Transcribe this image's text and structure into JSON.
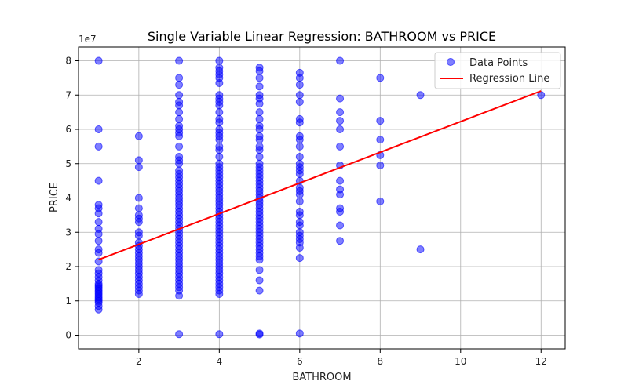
{
  "chart_data": {
    "type": "scatter",
    "title": "Single Variable Linear Regression: BATHROOM vs PRICE",
    "xlabel": "BATHROOM",
    "ylabel": "PRICE",
    "y_offset_label": "1e7",
    "xlim": [
      0.5,
      12.6
    ],
    "ylim": [
      -0.4,
      8.4
    ],
    "y_unit_multiplier": 10000000,
    "x_ticks": [
      2,
      4,
      6,
      8,
      10,
      12
    ],
    "y_ticks": [
      0,
      1,
      2,
      3,
      4,
      5,
      6,
      7,
      8
    ],
    "grid": true,
    "legend_position": "top-right",
    "colors": {
      "points": "#0000ff",
      "line": "#ff0000"
    },
    "series": [
      {
        "name": "Data Points",
        "kind": "scatter",
        "points": [
          [
            1,
            8.0
          ],
          [
            1,
            6.0
          ],
          [
            1,
            5.5
          ],
          [
            1,
            4.5
          ],
          [
            1,
            3.8
          ],
          [
            1,
            3.7
          ],
          [
            1,
            3.55
          ],
          [
            1,
            3.3
          ],
          [
            1,
            3.1
          ],
          [
            1,
            2.95
          ],
          [
            1,
            2.75
          ],
          [
            1,
            2.5
          ],
          [
            1,
            2.4
          ],
          [
            1,
            2.15
          ],
          [
            1,
            1.9
          ],
          [
            1,
            1.8
          ],
          [
            1,
            1.7
          ],
          [
            1,
            1.6
          ],
          [
            1,
            1.5
          ],
          [
            1,
            1.45
          ],
          [
            1,
            1.4
          ],
          [
            1,
            1.35
          ],
          [
            1,
            1.3
          ],
          [
            1,
            1.25
          ],
          [
            1,
            1.2
          ],
          [
            1,
            1.15
          ],
          [
            1,
            1.1
          ],
          [
            1,
            1.05
          ],
          [
            1,
            1.0
          ],
          [
            1,
            0.95
          ],
          [
            1,
            0.85
          ],
          [
            1,
            0.75
          ],
          [
            2,
            5.8
          ],
          [
            2,
            5.1
          ],
          [
            2,
            4.9
          ],
          [
            2,
            4.0
          ],
          [
            2,
            3.7
          ],
          [
            2,
            3.5
          ],
          [
            2,
            3.4
          ],
          [
            2,
            3.3
          ],
          [
            2,
            3.0
          ],
          [
            2,
            2.9
          ],
          [
            2,
            2.7
          ],
          [
            2,
            2.6
          ],
          [
            2,
            2.5
          ],
          [
            2,
            2.4
          ],
          [
            2,
            2.3
          ],
          [
            2,
            2.2
          ],
          [
            2,
            2.1
          ],
          [
            2,
            2.0
          ],
          [
            2,
            1.9
          ],
          [
            2,
            1.8
          ],
          [
            2,
            1.7
          ],
          [
            2,
            1.6
          ],
          [
            2,
            1.5
          ],
          [
            2,
            1.4
          ],
          [
            2,
            1.3
          ],
          [
            2,
            1.2
          ],
          [
            3,
            8.0
          ],
          [
            3,
            7.5
          ],
          [
            3,
            7.3
          ],
          [
            3,
            7.0
          ],
          [
            3,
            6.8
          ],
          [
            3,
            6.7
          ],
          [
            3,
            6.5
          ],
          [
            3,
            6.3
          ],
          [
            3,
            6.1
          ],
          [
            3,
            6.0
          ],
          [
            3,
            5.9
          ],
          [
            3,
            5.8
          ],
          [
            3,
            5.5
          ],
          [
            3,
            5.2
          ],
          [
            3,
            5.1
          ],
          [
            3,
            5.0
          ],
          [
            3,
            4.8
          ],
          [
            3,
            4.7
          ],
          [
            3,
            4.6
          ],
          [
            3,
            4.5
          ],
          [
            3,
            4.4
          ],
          [
            3,
            4.3
          ],
          [
            3,
            4.2
          ],
          [
            3,
            4.1
          ],
          [
            3,
            4.0
          ],
          [
            3,
            3.9
          ],
          [
            3,
            3.8
          ],
          [
            3,
            3.7
          ],
          [
            3,
            3.6
          ],
          [
            3,
            3.5
          ],
          [
            3,
            3.4
          ],
          [
            3,
            3.3
          ],
          [
            3,
            3.2
          ],
          [
            3,
            3.1
          ],
          [
            3,
            3.0
          ],
          [
            3,
            2.9
          ],
          [
            3,
            2.8
          ],
          [
            3,
            2.7
          ],
          [
            3,
            2.6
          ],
          [
            3,
            2.5
          ],
          [
            3,
            2.4
          ],
          [
            3,
            2.3
          ],
          [
            3,
            2.2
          ],
          [
            3,
            2.1
          ],
          [
            3,
            2.0
          ],
          [
            3,
            1.9
          ],
          [
            3,
            1.8
          ],
          [
            3,
            1.7
          ],
          [
            3,
            1.6
          ],
          [
            3,
            1.5
          ],
          [
            3,
            1.4
          ],
          [
            3,
            1.3
          ],
          [
            3,
            1.15
          ],
          [
            3,
            0.03
          ],
          [
            4,
            8.0
          ],
          [
            4,
            7.8
          ],
          [
            4,
            7.7
          ],
          [
            4,
            7.6
          ],
          [
            4,
            7.5
          ],
          [
            4,
            7.35
          ],
          [
            4,
            7.0
          ],
          [
            4,
            6.9
          ],
          [
            4,
            6.8
          ],
          [
            4,
            6.7
          ],
          [
            4,
            6.5
          ],
          [
            4,
            6.3
          ],
          [
            4,
            6.2
          ],
          [
            4,
            6.0
          ],
          [
            4,
            5.9
          ],
          [
            4,
            5.8
          ],
          [
            4,
            5.7
          ],
          [
            4,
            5.5
          ],
          [
            4,
            5.4
          ],
          [
            4,
            5.2
          ],
          [
            4,
            5.0
          ],
          [
            4,
            4.9
          ],
          [
            4,
            4.8
          ],
          [
            4,
            4.7
          ],
          [
            4,
            4.6
          ],
          [
            4,
            4.5
          ],
          [
            4,
            4.4
          ],
          [
            4,
            4.3
          ],
          [
            4,
            4.2
          ],
          [
            4,
            4.1
          ],
          [
            4,
            4.0
          ],
          [
            4,
            3.9
          ],
          [
            4,
            3.8
          ],
          [
            4,
            3.7
          ],
          [
            4,
            3.6
          ],
          [
            4,
            3.5
          ],
          [
            4,
            3.4
          ],
          [
            4,
            3.3
          ],
          [
            4,
            3.2
          ],
          [
            4,
            3.1
          ],
          [
            4,
            3.0
          ],
          [
            4,
            2.9
          ],
          [
            4,
            2.8
          ],
          [
            4,
            2.7
          ],
          [
            4,
            2.6
          ],
          [
            4,
            2.5
          ],
          [
            4,
            2.4
          ],
          [
            4,
            2.3
          ],
          [
            4,
            2.2
          ],
          [
            4,
            2.1
          ],
          [
            4,
            2.0
          ],
          [
            4,
            1.9
          ],
          [
            4,
            1.8
          ],
          [
            4,
            1.7
          ],
          [
            4,
            1.6
          ],
          [
            4,
            1.5
          ],
          [
            4,
            1.4
          ],
          [
            4,
            1.3
          ],
          [
            4,
            1.2
          ],
          [
            4,
            0.03
          ],
          [
            5,
            7.8
          ],
          [
            5,
            7.7
          ],
          [
            5,
            7.5
          ],
          [
            5,
            7.25
          ],
          [
            5,
            7.0
          ],
          [
            5,
            6.9
          ],
          [
            5,
            6.75
          ],
          [
            5,
            6.5
          ],
          [
            5,
            6.3
          ],
          [
            5,
            6.1
          ],
          [
            5,
            6.0
          ],
          [
            5,
            5.8
          ],
          [
            5,
            5.7
          ],
          [
            5,
            5.5
          ],
          [
            5,
            5.4
          ],
          [
            5,
            5.2
          ],
          [
            5,
            5.0
          ],
          [
            5,
            4.9
          ],
          [
            5,
            4.8
          ],
          [
            5,
            4.7
          ],
          [
            5,
            4.6
          ],
          [
            5,
            4.5
          ],
          [
            5,
            4.4
          ],
          [
            5,
            4.3
          ],
          [
            5,
            4.2
          ],
          [
            5,
            4.1
          ],
          [
            5,
            4.0
          ],
          [
            5,
            3.9
          ],
          [
            5,
            3.8
          ],
          [
            5,
            3.7
          ],
          [
            5,
            3.6
          ],
          [
            5,
            3.5
          ],
          [
            5,
            3.4
          ],
          [
            5,
            3.3
          ],
          [
            5,
            3.2
          ],
          [
            5,
            3.1
          ],
          [
            5,
            3.0
          ],
          [
            5,
            2.9
          ],
          [
            5,
            2.8
          ],
          [
            5,
            2.7
          ],
          [
            5,
            2.6
          ],
          [
            5,
            2.5
          ],
          [
            5,
            2.4
          ],
          [
            5,
            2.3
          ],
          [
            5,
            2.2
          ],
          [
            5,
            1.9
          ],
          [
            5,
            1.6
          ],
          [
            5,
            1.3
          ],
          [
            5,
            0.05
          ],
          [
            5,
            0.02
          ],
          [
            6,
            7.65
          ],
          [
            6,
            7.5
          ],
          [
            6,
            7.3
          ],
          [
            6,
            7.0
          ],
          [
            6,
            6.8
          ],
          [
            6,
            6.3
          ],
          [
            6,
            6.2
          ],
          [
            6,
            5.8
          ],
          [
            6,
            5.7
          ],
          [
            6,
            5.5
          ],
          [
            6,
            5.2
          ],
          [
            6,
            5.0
          ],
          [
            6,
            4.9
          ],
          [
            6,
            4.8
          ],
          [
            6,
            4.7
          ],
          [
            6,
            4.5
          ],
          [
            6,
            4.3
          ],
          [
            6,
            4.2
          ],
          [
            6,
            4.1
          ],
          [
            6,
            3.9
          ],
          [
            6,
            3.6
          ],
          [
            6,
            3.5
          ],
          [
            6,
            3.3
          ],
          [
            6,
            3.2
          ],
          [
            6,
            3.0
          ],
          [
            6,
            2.9
          ],
          [
            6,
            2.8
          ],
          [
            6,
            2.7
          ],
          [
            6,
            2.55
          ],
          [
            6,
            2.25
          ],
          [
            6,
            0.05
          ],
          [
            7,
            8.0
          ],
          [
            7,
            6.9
          ],
          [
            7,
            6.5
          ],
          [
            7,
            6.25
          ],
          [
            7,
            6.0
          ],
          [
            7,
            5.5
          ],
          [
            7,
            4.95
          ],
          [
            7,
            4.5
          ],
          [
            7,
            4.25
          ],
          [
            7,
            4.1
          ],
          [
            7,
            3.7
          ],
          [
            7,
            3.6
          ],
          [
            7,
            3.2
          ],
          [
            7,
            2.75
          ],
          [
            8,
            7.5
          ],
          [
            8,
            6.25
          ],
          [
            8,
            5.7
          ],
          [
            8,
            5.25
          ],
          [
            8,
            4.95
          ],
          [
            8,
            3.9
          ],
          [
            9,
            7.0
          ],
          [
            9,
            2.5
          ],
          [
            12,
            7.0
          ]
        ]
      },
      {
        "name": "Regression Line",
        "kind": "line",
        "points": [
          [
            1,
            2.2
          ],
          [
            12,
            7.12
          ]
        ]
      }
    ]
  }
}
